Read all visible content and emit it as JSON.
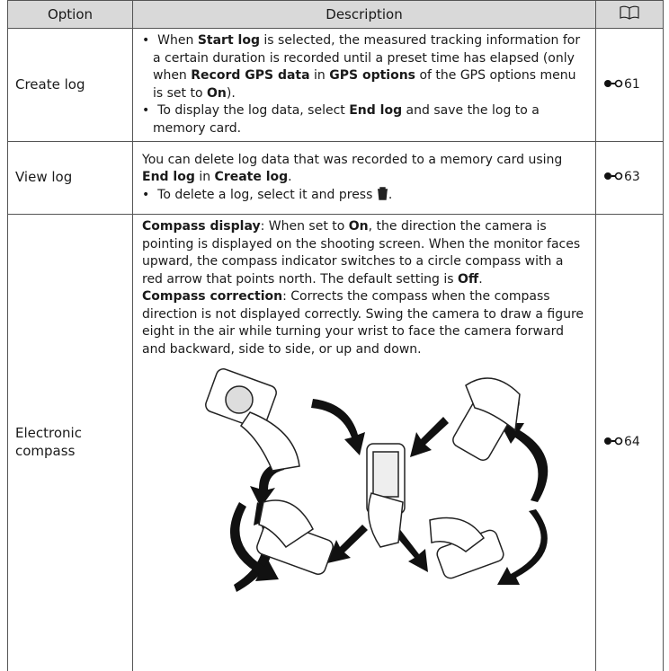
{
  "table": {
    "header": [
      "Option",
      "Description"
    ],
    "rows": [
      {
        "option": "Create log",
        "description": [
          {
            "bullet": true,
            "runs": [
              {
                "text": "When "
              },
              {
                "text": "Start log",
                "bold": true
              },
              {
                "text": " is selected, the measured tracking information for a certain duration is recorded until a preset time has elapsed (only when "
              },
              {
                "text": "Record GPS data",
                "bold": true
              },
              {
                "text": " in "
              },
              {
                "text": "GPS options",
                "bold": true
              },
              {
                "text": " of the GPS options menu is set to "
              },
              {
                "text": "On",
                "bold": true
              },
              {
                "text": ")."
              }
            ]
          },
          {
            "bullet": true,
            "runs": [
              {
                "text": "To display the log data, select "
              },
              {
                "text": "End log",
                "bold": true
              },
              {
                "text": " and save the log to a memory card."
              }
            ]
          }
        ],
        "ref": "61"
      },
      {
        "option": "View log",
        "description": [
          {
            "bullet": false,
            "runs": [
              {
                "text": "You can delete log data that was recorded to a memory card using "
              },
              {
                "text": "End log",
                "bold": true
              },
              {
                "text": " in "
              },
              {
                "text": "Create log",
                "bold": true
              },
              {
                "text": "."
              }
            ]
          },
          {
            "bullet": true,
            "runs": [
              {
                "text": "To delete a log, select it and press "
              },
              {
                "icon": "trash"
              },
              {
                "text": "."
              }
            ]
          }
        ],
        "ref": "63"
      },
      {
        "option": "Electronic compass",
        "description": [
          {
            "bullet": false,
            "runs": [
              {
                "text": "Compass display",
                "bold": true
              },
              {
                "text": ": When set to "
              },
              {
                "text": "On",
                "bold": true
              },
              {
                "text": ", the direction the camera is pointing is displayed on the shooting screen. When the monitor faces upward, the compass indicator switches to a circle compass with a red arrow that points north. The default setting is "
              },
              {
                "text": "Off",
                "bold": true
              },
              {
                "text": "."
              }
            ]
          },
          {
            "bullet": false,
            "runs": [
              {
                "text": "Compass correction",
                "bold": true
              },
              {
                "text": ": Corrects the compass when the compass direction is not displayed correctly. Swing the camera to draw a figure eight in the air while turning your wrist to face the camera forward and backward, side to side, or up and down."
              }
            ]
          }
        ],
        "ref": "64",
        "illustration": true
      }
    ]
  }
}
